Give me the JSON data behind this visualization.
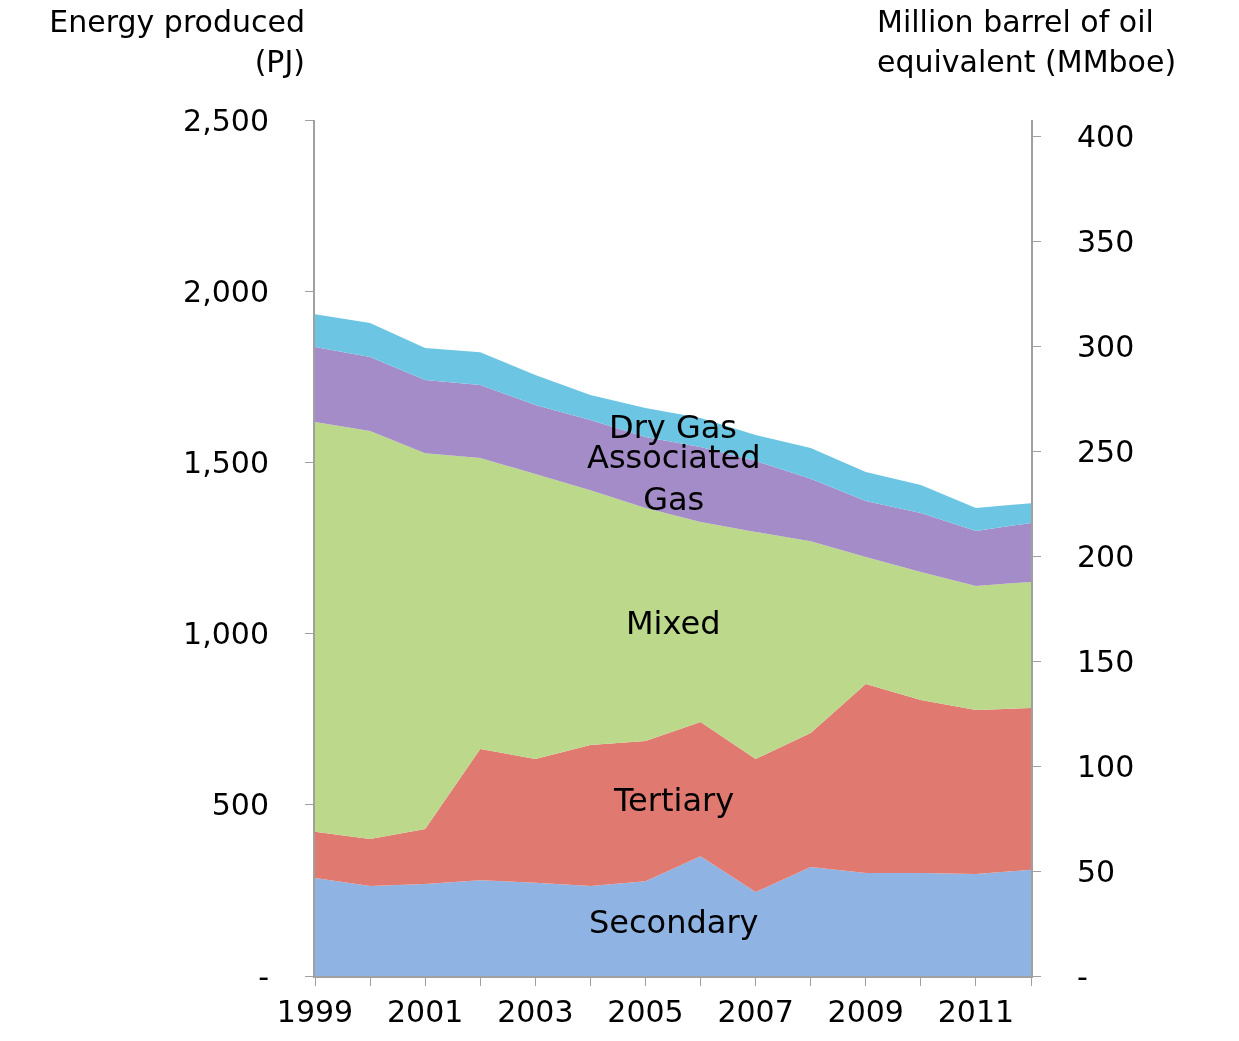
{
  "chart_data": {
    "type": "area",
    "stacked": true,
    "ylabel": "Energy produced (PJ)",
    "y2label": "Million barrel of oil equivalent (MMboe)",
    "x": [
      1999,
      2000,
      2001,
      2002,
      2003,
      2004,
      2005,
      2006,
      2007,
      2008,
      2009,
      2010,
      2011,
      2012
    ],
    "xlim": [
      1999,
      2012
    ],
    "xticks": [
      1999,
      {
        "value": 2000,
        "label": null
      },
      2001,
      {
        "value": 2002,
        "label": null
      },
      2003,
      {
        "value": 2004,
        "label": null
      },
      2005,
      {
        "value": 2006,
        "label": null
      },
      2007,
      {
        "value": 2008,
        "label": null
      },
      2009,
      {
        "value": 2010,
        "label": null
      },
      2011,
      {
        "value": 2012,
        "label": null
      }
    ],
    "ylim": [
      0,
      2500
    ],
    "yticks": [
      {
        "value": 0,
        "label": "-"
      },
      500,
      {
        "value": 1000,
        "label": "1,000"
      },
      {
        "value": 1500,
        "label": "1,500"
      },
      {
        "value": 2000,
        "label": "2,000"
      },
      {
        "value": 2500,
        "label": "2,500"
      }
    ],
    "y2lim": [
      0,
      408
    ],
    "y2ticks": [
      {
        "value": 0,
        "label": "-"
      },
      50,
      100,
      150,
      200,
      250,
      300,
      350,
      400
    ],
    "grid": false,
    "legend": false,
    "series": [
      {
        "name": "Secondary",
        "color": "#8fb4e3",
        "values": [
          286,
          263,
          269,
          280,
          272,
          263,
          277,
          350,
          245,
          318,
          301,
          301,
          298,
          310
        ]
      },
      {
        "name": "Tertiary",
        "color": "#e07a70",
        "values": [
          135,
          137,
          160,
          383,
          362,
          412,
          409,
          392,
          389,
          392,
          552,
          505,
          479,
          473
        ]
      },
      {
        "name": "Mixed",
        "color": "#bcd88a",
        "values": [
          1197,
          1192,
          1098,
          850,
          832,
          744,
          681,
          584,
          663,
          560,
          371,
          374,
          362,
          368
        ]
      },
      {
        "name": "Associated Gas",
        "color": "#a48cc8",
        "values": [
          219,
          216,
          214,
          213,
          202,
          205,
          207,
          219,
          207,
          182,
          163,
          172,
          161,
          172
        ]
      },
      {
        "name": "Dry Gas",
        "color": "#6cc6e3",
        "values": [
          96,
          99,
          93,
          96,
          87,
          73,
          85,
          85,
          76,
          90,
          85,
          82,
          67,
          58
        ]
      }
    ]
  }
}
